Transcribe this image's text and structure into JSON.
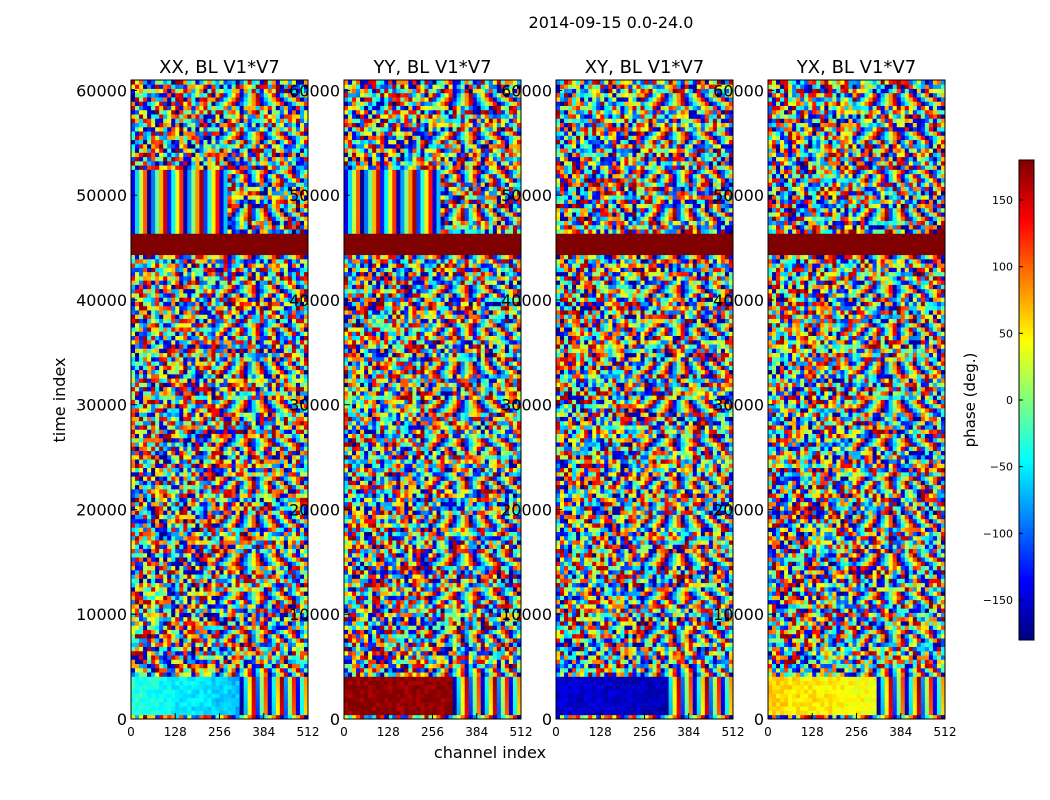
{
  "chart_data": {
    "type": "heatmap",
    "title": "2014-09-15 0.0-24.0",
    "xlabel": "channel index",
    "ylabel": "time index",
    "xlim": [
      0,
      512
    ],
    "ylim": [
      0,
      61000
    ],
    "x_ticks": [
      0,
      128,
      256,
      384,
      512
    ],
    "y_ticks": [
      0,
      10000,
      20000,
      30000,
      40000,
      50000,
      60000
    ],
    "panels": [
      {
        "title": "XX, BL V1*V7",
        "low_band_mean_deg": -30,
        "low_band_tail_deg": -70,
        "flag_value_deg": 180
      },
      {
        "title": "YY, BL V1*V7",
        "low_band_mean_deg": 175,
        "low_band_tail_deg": 175,
        "flag_value_deg": 180
      },
      {
        "title": "XY, BL V1*V7",
        "low_band_mean_deg": -150,
        "low_band_tail_deg": -160,
        "flag_value_deg": 180
      },
      {
        "title": "YX, BL V1*V7",
        "low_band_mean_deg": 60,
        "low_band_tail_deg": 40,
        "flag_value_deg": 180
      }
    ],
    "flagged_time_range": [
      44500,
      46500
    ],
    "colorbar": {
      "label": "phase (deg.)",
      "range": [
        -180,
        180
      ],
      "ticks": [
        -150,
        -100,
        -50,
        0,
        50,
        100,
        150
      ],
      "tick_labels": [
        "−150",
        "−100",
        "−50",
        "0",
        "50",
        "100",
        "150"
      ],
      "colormap": [
        "#00007f",
        "#0000ff",
        "#007fff",
        "#00ffff",
        "#7fff7f",
        "#ffff00",
        "#ff7f00",
        "#ff0000",
        "#7f0000"
      ]
    }
  }
}
